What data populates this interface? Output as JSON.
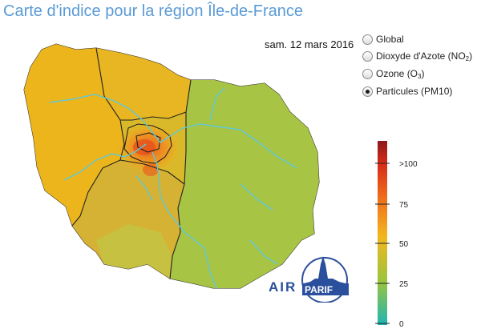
{
  "title": "Carte d'indice pour la région Île-de-France",
  "date": "sam. 12 mars 2016",
  "pollutants": [
    {
      "label": "Global",
      "sub": "",
      "after": "",
      "selected": false
    },
    {
      "label": "Dioxyde d'Azote (NO",
      "sub": "2",
      "after": ")",
      "selected": false
    },
    {
      "label": "Ozone (O",
      "sub": "3",
      "after": ")",
      "selected": false
    },
    {
      "label": "Particules (PM10)",
      "sub": "",
      "after": "",
      "selected": true
    }
  ],
  "scale": {
    "ticks": [
      ">100",
      "75",
      "50",
      "25",
      "0"
    ],
    "colors": {
      "top": "#8a1a1a",
      "high": "#e8491c",
      "mid": "#f2b71f",
      "low": "#9cc43c",
      "bottom": "#1fb5b3"
    }
  },
  "map_colors": {
    "west": "#ecb51c",
    "north": "#e8b622",
    "east": "#a8c445",
    "south": "#b6c84c",
    "paris": "#ea7a24",
    "rivers": "#5ec8d8",
    "borders": "#222222"
  },
  "logo": {
    "left": "AIR",
    "right": "PARIF"
  }
}
